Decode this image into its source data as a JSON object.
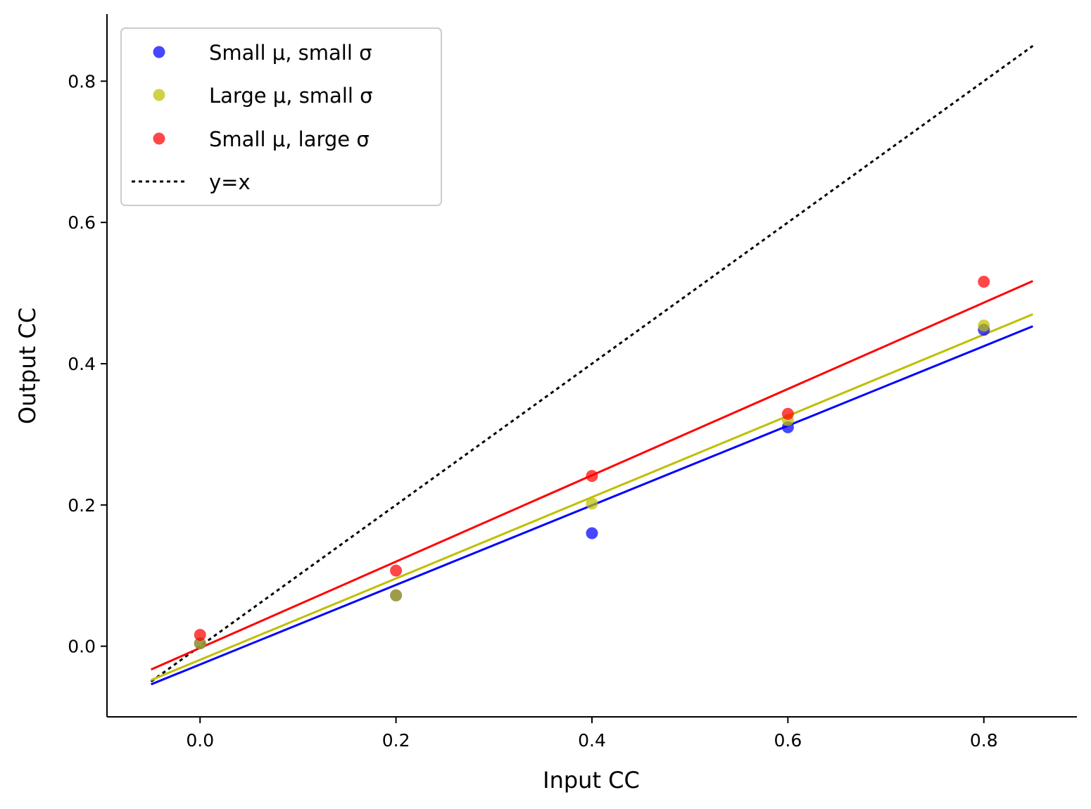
{
  "chart_data": {
    "type": "scatter",
    "xlabel": "Input CC",
    "ylabel": "Output CC",
    "xlim": [
      -0.095,
      0.895
    ],
    "ylim": [
      -0.1,
      0.895
    ],
    "xticks": [
      "0.0",
      "0.2",
      "0.4",
      "0.6",
      "0.8"
    ],
    "yticks": [
      "0.0",
      "0.2",
      "0.4",
      "0.6",
      "0.8"
    ],
    "xtick_values": [
      0.0,
      0.2,
      0.4,
      0.6,
      0.8
    ],
    "ytick_values": [
      0.0,
      0.2,
      0.4,
      0.6,
      0.8
    ],
    "grid": false,
    "legend_position": "top-left",
    "series": [
      {
        "name": "Small μ, small σ",
        "color": "#0000ff",
        "x": [
          0.0,
          0.2,
          0.4,
          0.6,
          0.8
        ],
        "y": [
          0.004,
          0.072,
          0.16,
          0.31,
          0.448
        ],
        "fit": {
          "x": [
            -0.05,
            0.85
          ],
          "y": [
            -0.054,
            0.453
          ]
        }
      },
      {
        "name": "Large μ, small σ",
        "color": "#bfbf00",
        "x": [
          0.0,
          0.2,
          0.4,
          0.6,
          0.8
        ],
        "y": [
          0.004,
          0.072,
          0.202,
          0.32,
          0.454
        ],
        "fit": {
          "x": [
            -0.05,
            0.85
          ],
          "y": [
            -0.048,
            0.47
          ]
        }
      },
      {
        "name": "Small μ, large σ",
        "color": "#ff0000",
        "x": [
          0.0,
          0.2,
          0.4,
          0.6,
          0.8
        ],
        "y": [
          0.016,
          0.107,
          0.241,
          0.329,
          0.516
        ],
        "fit": {
          "x": [
            -0.05,
            0.85
          ],
          "y": [
            -0.033,
            0.517
          ]
        }
      }
    ],
    "reference_line": {
      "name": "y=x",
      "color": "#000000",
      "style": "dotted",
      "x": [
        -0.05,
        0.85
      ],
      "y": [
        -0.05,
        0.85
      ]
    }
  }
}
